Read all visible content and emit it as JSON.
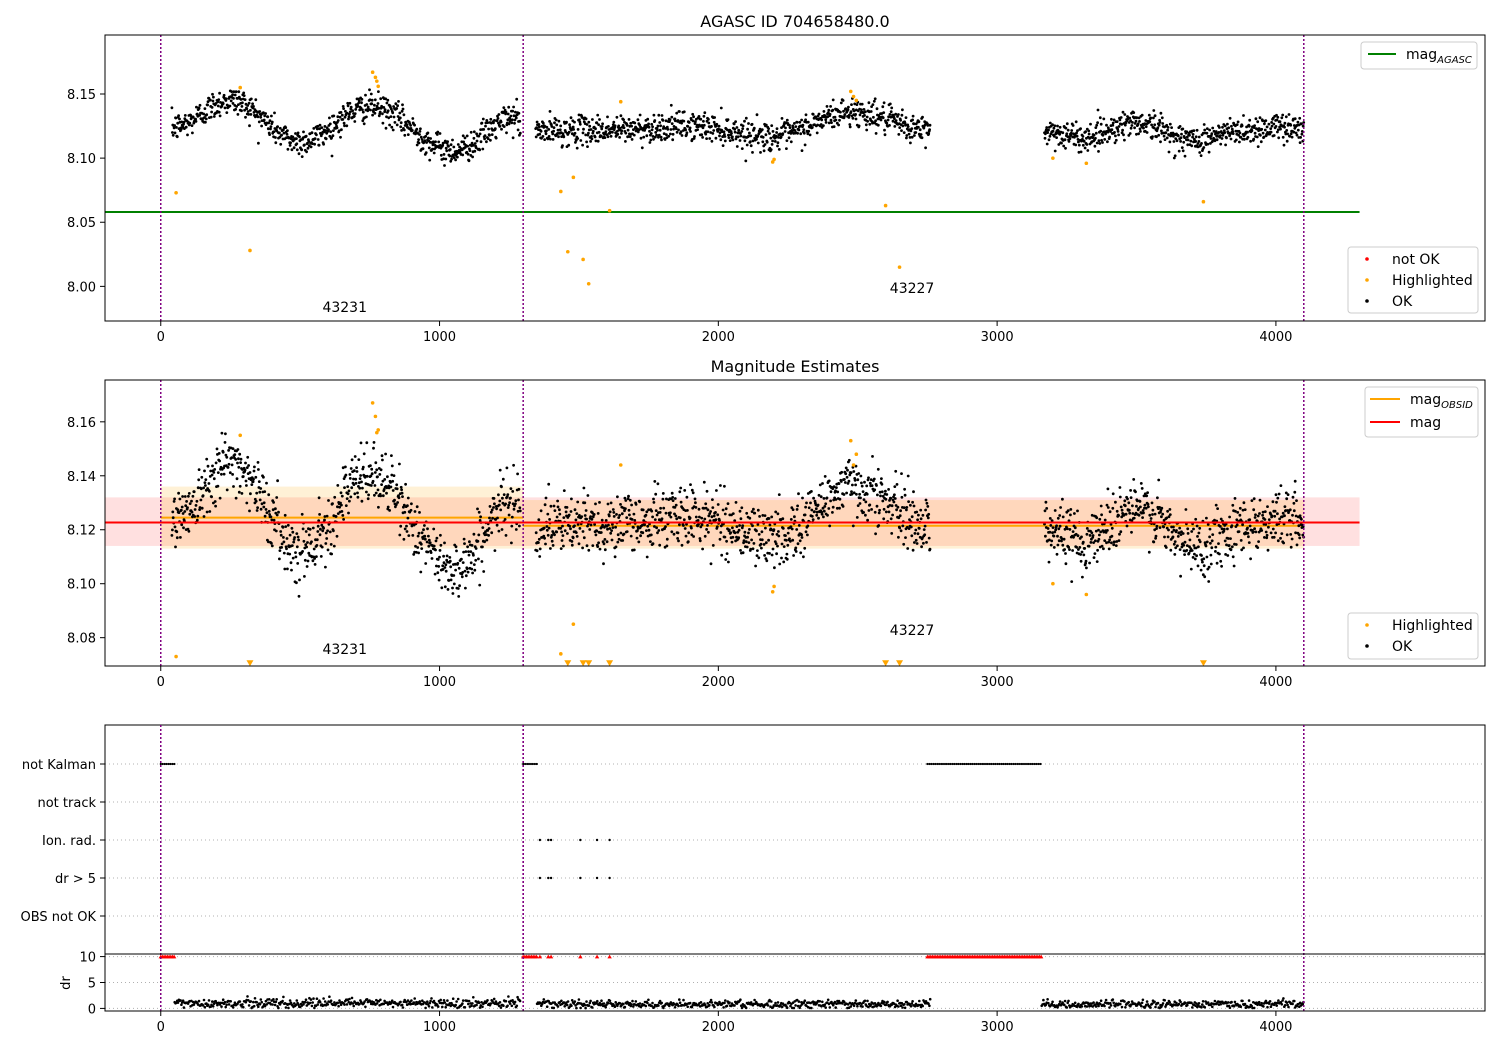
{
  "chart_data": [
    {
      "type": "scatter",
      "title": "AGASC ID 704658480.0",
      "xlim": [
        -200,
        4750
      ],
      "ylim": [
        7.973,
        8.196
      ],
      "xticks": [
        0,
        1000,
        2000,
        3000,
        4000
      ],
      "yticks": [
        8.0,
        8.05,
        8.1,
        8.15
      ],
      "ytick_labels": [
        "8.00",
        "8.05",
        "8.10",
        "8.15"
      ],
      "grid": false,
      "vlines": [
        0,
        1300,
        4100
      ],
      "annotations": [
        {
          "text": "43231",
          "x": 580,
          "y": 7.98
        },
        {
          "text": "43227",
          "x": 2615,
          "y": 7.995
        }
      ],
      "lines": [
        {
          "name": "mag_AGASC",
          "y": 8.058,
          "x_range": [
            -200,
            4300
          ],
          "color": "#008000"
        }
      ],
      "legend_lines": [
        {
          "label_main": "mag",
          "label_sub": "AGASC",
          "color": "#008000"
        }
      ],
      "legend_points": [
        {
          "label": "not OK",
          "color": "#ff0000"
        },
        {
          "label": "Highlighted",
          "color": "#ffa500"
        },
        {
          "label": "OK",
          "color": "#000000"
        }
      ],
      "segments": [
        {
          "x": [
            40,
            1290
          ],
          "level": 8.124,
          "wiggles": [
            [
              250,
              8.145
            ],
            [
              500,
              8.113
            ],
            [
              750,
              8.14
            ],
            [
              1050,
              8.106
            ],
            [
              1280,
              8.132
            ]
          ]
        },
        {
          "x": [
            1345,
            2760
          ],
          "level": 8.121,
          "wiggles": [
            [
              1600,
              8.122
            ],
            [
              1900,
              8.125
            ],
            [
              2200,
              8.117
            ],
            [
              2480,
              8.136
            ],
            [
              2750,
              8.122
            ]
          ]
        },
        {
          "x": [
            3170,
            4100
          ],
          "level": 8.121,
          "wiggles": [
            [
              3300,
              8.116
            ],
            [
              3500,
              8.128
            ],
            [
              3700,
              8.114
            ],
            [
              3900,
              8.122
            ],
            [
              4050,
              8.125
            ]
          ]
        }
      ],
      "series": [
        {
          "name": "Highlighted",
          "color": "#ffa500",
          "x": [
            55,
            285,
            320,
            760,
            770,
            775,
            780,
            1435,
            1460,
            1480,
            1515,
            1535,
            1610,
            1650,
            2195,
            2200,
            2475,
            2485,
            2495,
            2600,
            2650,
            3200,
            3320,
            3740
          ],
          "y": [
            8.073,
            8.155,
            8.028,
            8.167,
            8.163,
            8.16,
            8.156,
            8.074,
            8.027,
            8.085,
            8.021,
            8.002,
            8.059,
            8.144,
            8.097,
            8.099,
            8.152,
            8.148,
            8.145,
            8.063,
            8.015,
            8.1,
            8.096,
            8.066
          ]
        }
      ]
    },
    {
      "type": "scatter",
      "title": "Magnitude Estimates",
      "xlim": [
        -200,
        4750
      ],
      "ylim": [
        8.0695,
        8.1755
      ],
      "xticks": [
        0,
        1000,
        2000,
        3000,
        4000
      ],
      "yticks": [
        8.08,
        8.1,
        8.12,
        8.14,
        8.16
      ],
      "ytick_labels": [
        "8.08",
        "8.10",
        "8.12",
        "8.14",
        "8.16"
      ],
      "grid": false,
      "vlines": [
        0,
        1300,
        4100
      ],
      "annotations": [
        {
          "text": "43231",
          "x": 580,
          "y": 8.074
        },
        {
          "text": "43227",
          "x": 2615,
          "y": 8.081
        }
      ],
      "bands": [
        {
          "x_range": [
            -200,
            4300
          ],
          "y_range": [
            8.114,
            8.132
          ],
          "color": "#ff0000",
          "opacity": 0.12
        },
        {
          "x_range": [
            0,
            1300
          ],
          "y_range": [
            8.113,
            8.136
          ],
          "color": "#ffa500",
          "opacity": 0.16
        },
        {
          "x_range": [
            1300,
            4100
          ],
          "y_range": [
            8.113,
            8.131
          ],
          "color": "#ffa500",
          "opacity": 0.16
        }
      ],
      "lines": [
        {
          "name": "mag_OBSID",
          "color": "#ffa500",
          "segments": [
            {
              "x": [
                0,
                1300
              ],
              "y": 8.1245
            },
            {
              "x": [
                1300,
                4100
              ],
              "y": 8.1215
            }
          ]
        },
        {
          "name": "mag",
          "color": "#ff0000",
          "y": 8.1227,
          "x_range": [
            -200,
            4300
          ]
        }
      ],
      "legend_lines": [
        {
          "label_main": "mag",
          "label_sub": "OBSID",
          "color": "#ffa500"
        },
        {
          "label_main": "mag",
          "label_sub": "",
          "color": "#ff0000"
        }
      ],
      "legend_points": [
        {
          "label": "Highlighted",
          "color": "#ffa500"
        },
        {
          "label": "OK",
          "color": "#000000"
        }
      ],
      "segments": [
        {
          "x": [
            40,
            1290
          ],
          "level": 8.124,
          "wiggles": [
            [
              250,
              8.145
            ],
            [
              500,
              8.113
            ],
            [
              750,
              8.14
            ],
            [
              1050,
              8.106
            ],
            [
              1280,
              8.132
            ]
          ]
        },
        {
          "x": [
            1345,
            2760
          ],
          "level": 8.121,
          "wiggles": [
            [
              1600,
              8.122
            ],
            [
              1900,
              8.125
            ],
            [
              2200,
              8.117
            ],
            [
              2480,
              8.136
            ],
            [
              2750,
              8.122
            ]
          ]
        },
        {
          "x": [
            3170,
            4100
          ],
          "level": 8.121,
          "wiggles": [
            [
              3300,
              8.116
            ],
            [
              3500,
              8.128
            ],
            [
              3700,
              8.114
            ],
            [
              3900,
              8.122
            ],
            [
              4050,
              8.125
            ]
          ]
        }
      ],
      "series": [
        {
          "name": "Highlighted",
          "color": "#ffa500",
          "x": [
            55,
            285,
            760,
            770,
            775,
            780,
            1435,
            1480,
            1650,
            2195,
            2200,
            2475,
            2485,
            2495,
            3200,
            3320
          ],
          "y": [
            8.073,
            8.155,
            8.167,
            8.162,
            8.156,
            8.157,
            8.074,
            8.085,
            8.144,
            8.097,
            8.099,
            8.153,
            8.144,
            8.148,
            8.1,
            8.096
          ]
        },
        {
          "name": "Highlighted (off-axis markers)",
          "color": "#ffa500",
          "marker": "triangle-down",
          "x": [
            320,
            1460,
            1515,
            1535,
            1610,
            2600,
            2650,
            3740
          ],
          "y": [
            8.0705,
            8.0705,
            8.0705,
            8.0705,
            8.0705,
            8.0705,
            8.0705,
            8.0705
          ]
        }
      ]
    },
    {
      "type": "scatter",
      "title": "",
      "xlim": [
        -200,
        4750
      ],
      "xticks": [
        0,
        1000,
        2000,
        3000,
        4000
      ],
      "flag_categories": [
        "not Kalman",
        "not track",
        "Ion. rad.",
        "dr > 5",
        "OBS not OK"
      ],
      "grid": true,
      "vlines": [
        0,
        1300,
        4100
      ],
      "flags": [
        {
          "category": "not Kalman",
          "ranges": [
            [
              0,
              50
            ],
            [
              1300,
              1350
            ],
            [
              2750,
              3160
            ]
          ]
        },
        {
          "category": "not track",
          "ranges": []
        },
        {
          "category": "Ion. rad.",
          "points": [
            1360,
            1390,
            1400,
            1505,
            1565,
            1610
          ]
        },
        {
          "category": "dr > 5",
          "points": [
            1360,
            1390,
            1400,
            1505,
            1565,
            1610
          ]
        },
        {
          "category": "OBS not OK",
          "ranges": []
        }
      ]
    },
    {
      "type": "scatter",
      "title": "",
      "ylabel": "dr",
      "xlim": [
        -200,
        4750
      ],
      "ylim": [
        -0.5,
        10.5
      ],
      "xticks": [
        0,
        1000,
        2000,
        3000,
        4000
      ],
      "yticks": [
        0,
        5,
        10
      ],
      "ytick_labels": [
        "0",
        "5",
        "10"
      ],
      "grid": true,
      "vlines": [
        0,
        1300,
        4100
      ],
      "capped_value": 10,
      "capped": {
        "color": "#ff0000",
        "ranges": [
          [
            0,
            50
          ],
          [
            1300,
            1350
          ],
          [
            2750,
            3160
          ]
        ],
        "points": [
          1360,
          1390,
          1400,
          1505,
          1565,
          1610
        ]
      },
      "segments": [
        {
          "x": [
            50,
            1290
          ],
          "mean": 1.0,
          "spread": 0.9
        },
        {
          "x": [
            1350,
            2760
          ],
          "mean": 0.8,
          "spread": 0.8
        },
        {
          "x": [
            3160,
            4100
          ],
          "mean": 0.8,
          "spread": 0.8
        }
      ]
    }
  ]
}
